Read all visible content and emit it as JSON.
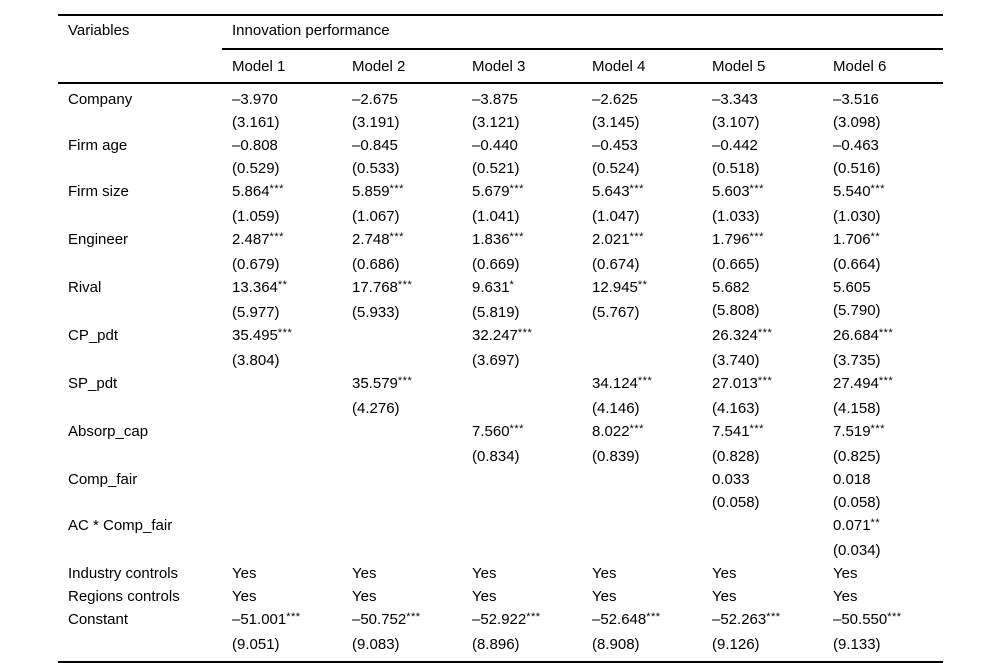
{
  "table": {
    "variables_header": "Variables",
    "group_header": "Innovation performance",
    "model_headers": [
      "Model 1",
      "Model 2",
      "Model 3",
      "Model 4",
      "Model 5",
      "Model 6"
    ],
    "rows": [
      {
        "label": "Company",
        "cells": [
          [
            "–3.970",
            "(3.161)"
          ],
          [
            "–2.675",
            "(3.191)"
          ],
          [
            "–3.875",
            "(3.121)"
          ],
          [
            "–2.625",
            "(3.145)"
          ],
          [
            "–3.343",
            "(3.107)"
          ],
          [
            "–3.516",
            "(3.098)"
          ]
        ]
      },
      {
        "label": "Firm age",
        "cells": [
          [
            "–0.808",
            "(0.529)"
          ],
          [
            "–0.845",
            "(0.533)"
          ],
          [
            "–0.440",
            "(0.521)"
          ],
          [
            "–0.453",
            "(0.524)"
          ],
          [
            "–0.442",
            "(0.518)"
          ],
          [
            "–0.463",
            "(0.516)"
          ]
        ]
      },
      {
        "label": "Firm size",
        "cells": [
          [
            "5.864***",
            "(1.059)"
          ],
          [
            "5.859***",
            "(1.067)"
          ],
          [
            "5.679***",
            "(1.041)"
          ],
          [
            "5.643***",
            "(1.047)"
          ],
          [
            "5.603***",
            "(1.033)"
          ],
          [
            "5.540***",
            "(1.030)"
          ]
        ]
      },
      {
        "label": "Engineer",
        "cells": [
          [
            "2.487***",
            "(0.679)"
          ],
          [
            "2.748***",
            "(0.686)"
          ],
          [
            "1.836***",
            "(0.669)"
          ],
          [
            "2.021***",
            "(0.674)"
          ],
          [
            "1.796***",
            "(0.665)"
          ],
          [
            "1.706**",
            "(0.664)"
          ]
        ]
      },
      {
        "label": "Rival",
        "cells": [
          [
            "13.364**",
            "(5.977)"
          ],
          [
            "17.768***",
            "(5.933)"
          ],
          [
            "9.631*",
            "(5.819)"
          ],
          [
            "12.945**",
            "(5.767)"
          ],
          [
            "5.682",
            "(5.808)"
          ],
          [
            "5.605",
            "(5.790)"
          ]
        ]
      },
      {
        "label": "CP_pdt",
        "cells": [
          [
            "35.495***",
            "(3.804)"
          ],
          null,
          [
            "32.247***",
            "(3.697)"
          ],
          null,
          [
            "26.324***",
            "(3.740)"
          ],
          [
            "26.684***",
            "(3.735)"
          ]
        ]
      },
      {
        "label": "SP_pdt",
        "cells": [
          null,
          [
            "35.579***",
            "(4.276)"
          ],
          null,
          [
            "34.124***",
            "(4.146)"
          ],
          [
            "27.013***",
            "(4.163)"
          ],
          [
            "27.494***",
            "(4.158)"
          ]
        ]
      },
      {
        "label": "Absorp_cap",
        "cells": [
          null,
          null,
          [
            "7.560***",
            "(0.834)"
          ],
          [
            "8.022***",
            "(0.839)"
          ],
          [
            "7.541***",
            "(0.828)"
          ],
          [
            "7.519***",
            "(0.825)"
          ]
        ]
      },
      {
        "label": "Comp_fair",
        "cells": [
          null,
          null,
          null,
          null,
          [
            "0.033",
            "(0.058)"
          ],
          [
            "0.018",
            "(0.058)"
          ]
        ]
      },
      {
        "label": "AC * Comp_fair",
        "cells": [
          null,
          null,
          null,
          null,
          null,
          [
            "0.071**",
            "(0.034)"
          ]
        ]
      },
      {
        "label": "Industry controls",
        "cells": [
          [
            "Yes",
            ""
          ],
          [
            "Yes",
            ""
          ],
          [
            "Yes",
            ""
          ],
          [
            "Yes",
            ""
          ],
          [
            "Yes",
            ""
          ],
          [
            "Yes",
            ""
          ]
        ]
      },
      {
        "label": "Regions controls",
        "cells": [
          [
            "Yes",
            ""
          ],
          [
            "Yes",
            ""
          ],
          [
            "Yes",
            ""
          ],
          [
            "Yes",
            ""
          ],
          [
            "Yes",
            ""
          ],
          [
            "Yes",
            ""
          ]
        ]
      },
      {
        "label": "Constant",
        "cells": [
          [
            "–51.001***",
            "(9.051)"
          ],
          [
            "–50.752***",
            "(9.083)"
          ],
          [
            "–52.922***",
            "(8.896)"
          ],
          [
            "–52.648***",
            "(8.908)"
          ],
          [
            "–52.263***",
            "(9.126)"
          ],
          [
            "–50.550***",
            "(9.133)"
          ]
        ]
      }
    ]
  }
}
